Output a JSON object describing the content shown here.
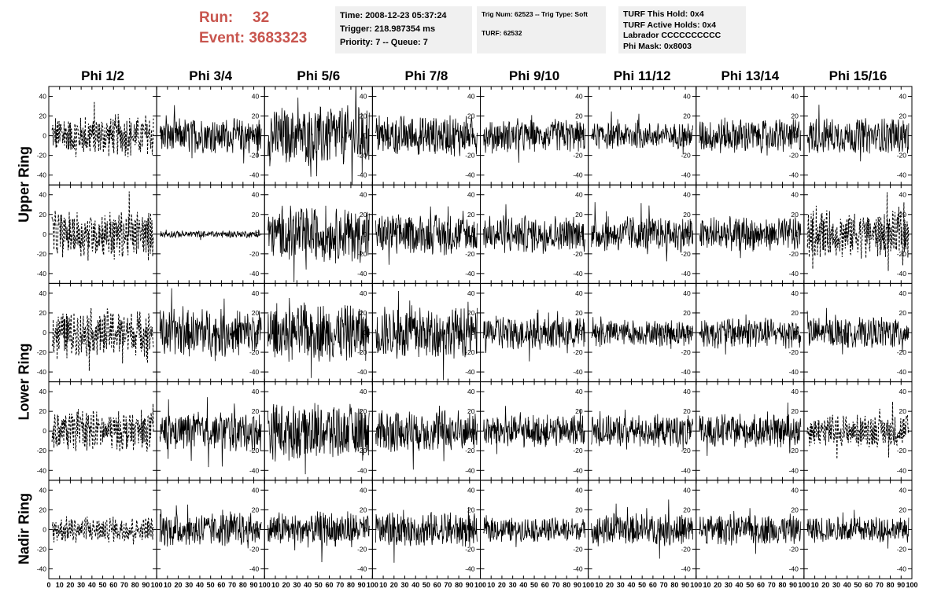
{
  "header": {
    "run_label": "Run:",
    "run_value": "32",
    "event_label": "Event:",
    "event_value": "3683323"
  },
  "info_time": {
    "time": "Time: 2008-12-23 05:37:24",
    "trigger": "Trigger: 218.987354 ms",
    "priority": "Priority: 7 -- Queue: 7"
  },
  "info_trig": {
    "trig": "Trig Num: 62523 -- Trig Type: Soft",
    "turf": "TURF: 62532"
  },
  "info_turf": {
    "hold": "TURF This Hold: 0x4",
    "active": "TURF Active Holds: 0x4",
    "labrador": "Labrador CCCCCCCCCC",
    "phimask": "Phi Mask: 0x8003"
  },
  "colors": {
    "header_red": "#c8554e",
    "panel_bg": "#f0f0f0",
    "trace": "#000000"
  },
  "chart_data": {
    "type": "line",
    "columns": [
      "Phi 1/2",
      "Phi 3/4",
      "Phi 5/6",
      "Phi 7/8",
      "Phi 9/10",
      "Phi 11/12",
      "Phi 13/14",
      "Phi 15/16"
    ],
    "rows": [
      "Upper Ring",
      "Upper Ring",
      "Lower Ring",
      "Lower Ring",
      "Nadir Ring"
    ],
    "row_labels": [
      "Upper Ring",
      "Lower Ring",
      "Nadir Ring"
    ],
    "x_range": [
      0,
      100
    ],
    "y_range": [
      -50,
      50
    ],
    "y_ticks": [
      -40,
      -20,
      0,
      20,
      40
    ],
    "x_ticks": [
      0,
      10,
      20,
      30,
      40,
      50,
      60,
      70,
      80,
      90,
      100
    ],
    "x_tick_labels": [
      "0",
      "10",
      "20",
      "30",
      "40",
      "50",
      "60",
      "70",
      "80",
      "90",
      "100"
    ],
    "trace_style_dashed": [
      [
        true,
        false,
        false,
        false,
        false,
        false,
        false,
        false
      ],
      [
        true,
        false,
        false,
        false,
        false,
        false,
        false,
        true
      ],
      [
        true,
        false,
        false,
        false,
        false,
        false,
        false,
        false
      ],
      [
        true,
        false,
        false,
        false,
        false,
        false,
        false,
        true
      ],
      [
        true,
        false,
        false,
        false,
        false,
        false,
        false,
        false
      ]
    ],
    "trace_amplitude": [
      [
        18,
        15,
        25,
        17,
        14,
        11,
        15,
        15
      ],
      [
        20,
        3,
        24,
        17,
        16,
        15,
        15,
        20
      ],
      [
        20,
        20,
        25,
        22,
        15,
        11,
        13,
        13
      ],
      [
        17,
        17,
        25,
        18,
        14,
        14,
        14,
        14
      ],
      [
        11,
        14,
        15,
        15,
        10,
        14,
        13,
        11
      ]
    ]
  }
}
